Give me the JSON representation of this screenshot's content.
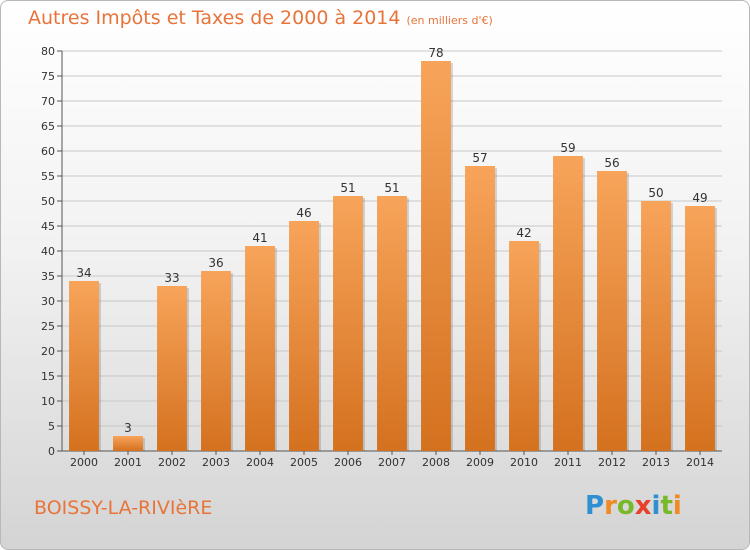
{
  "header": {
    "title": "Autres Impôts et Taxes de 2000 à 2014",
    "unit": "(en milliers d'€)"
  },
  "footer": {
    "commune": "BOISSY-LA-RIVIèRE",
    "logo_letters": [
      {
        "ch": "P",
        "color": "#2f8fd0"
      },
      {
        "ch": "r",
        "color": "#f08a24"
      },
      {
        "ch": "o",
        "color": "#79b829"
      },
      {
        "ch": "x",
        "color": "#e8402b"
      },
      {
        "ch": "i",
        "color": "#2f8fd0"
      },
      {
        "ch": "t",
        "color": "#79b829"
      },
      {
        "ch": "i",
        "color": "#f08a24"
      }
    ]
  },
  "chart_data": {
    "type": "bar",
    "title": "Autres Impôts et Taxes de 2000 à 2014",
    "subtitle": "(en milliers d'€)",
    "categories": [
      "2000",
      "2001",
      "2002",
      "2003",
      "2004",
      "2005",
      "2006",
      "2007",
      "2008",
      "2009",
      "2010",
      "2011",
      "2012",
      "2013",
      "2014"
    ],
    "values": [
      34,
      3,
      33,
      36,
      41,
      46,
      51,
      51,
      78,
      57,
      42,
      59,
      56,
      50,
      49
    ],
    "ylim": [
      0,
      80
    ],
    "yticks": [
      0,
      5,
      10,
      15,
      20,
      25,
      30,
      35,
      40,
      45,
      50,
      55,
      60,
      65,
      70,
      75,
      80
    ],
    "grid": true,
    "bar_color_top": "#f7a45a",
    "bar_color_bottom": "#d4711f",
    "legend": "none"
  }
}
